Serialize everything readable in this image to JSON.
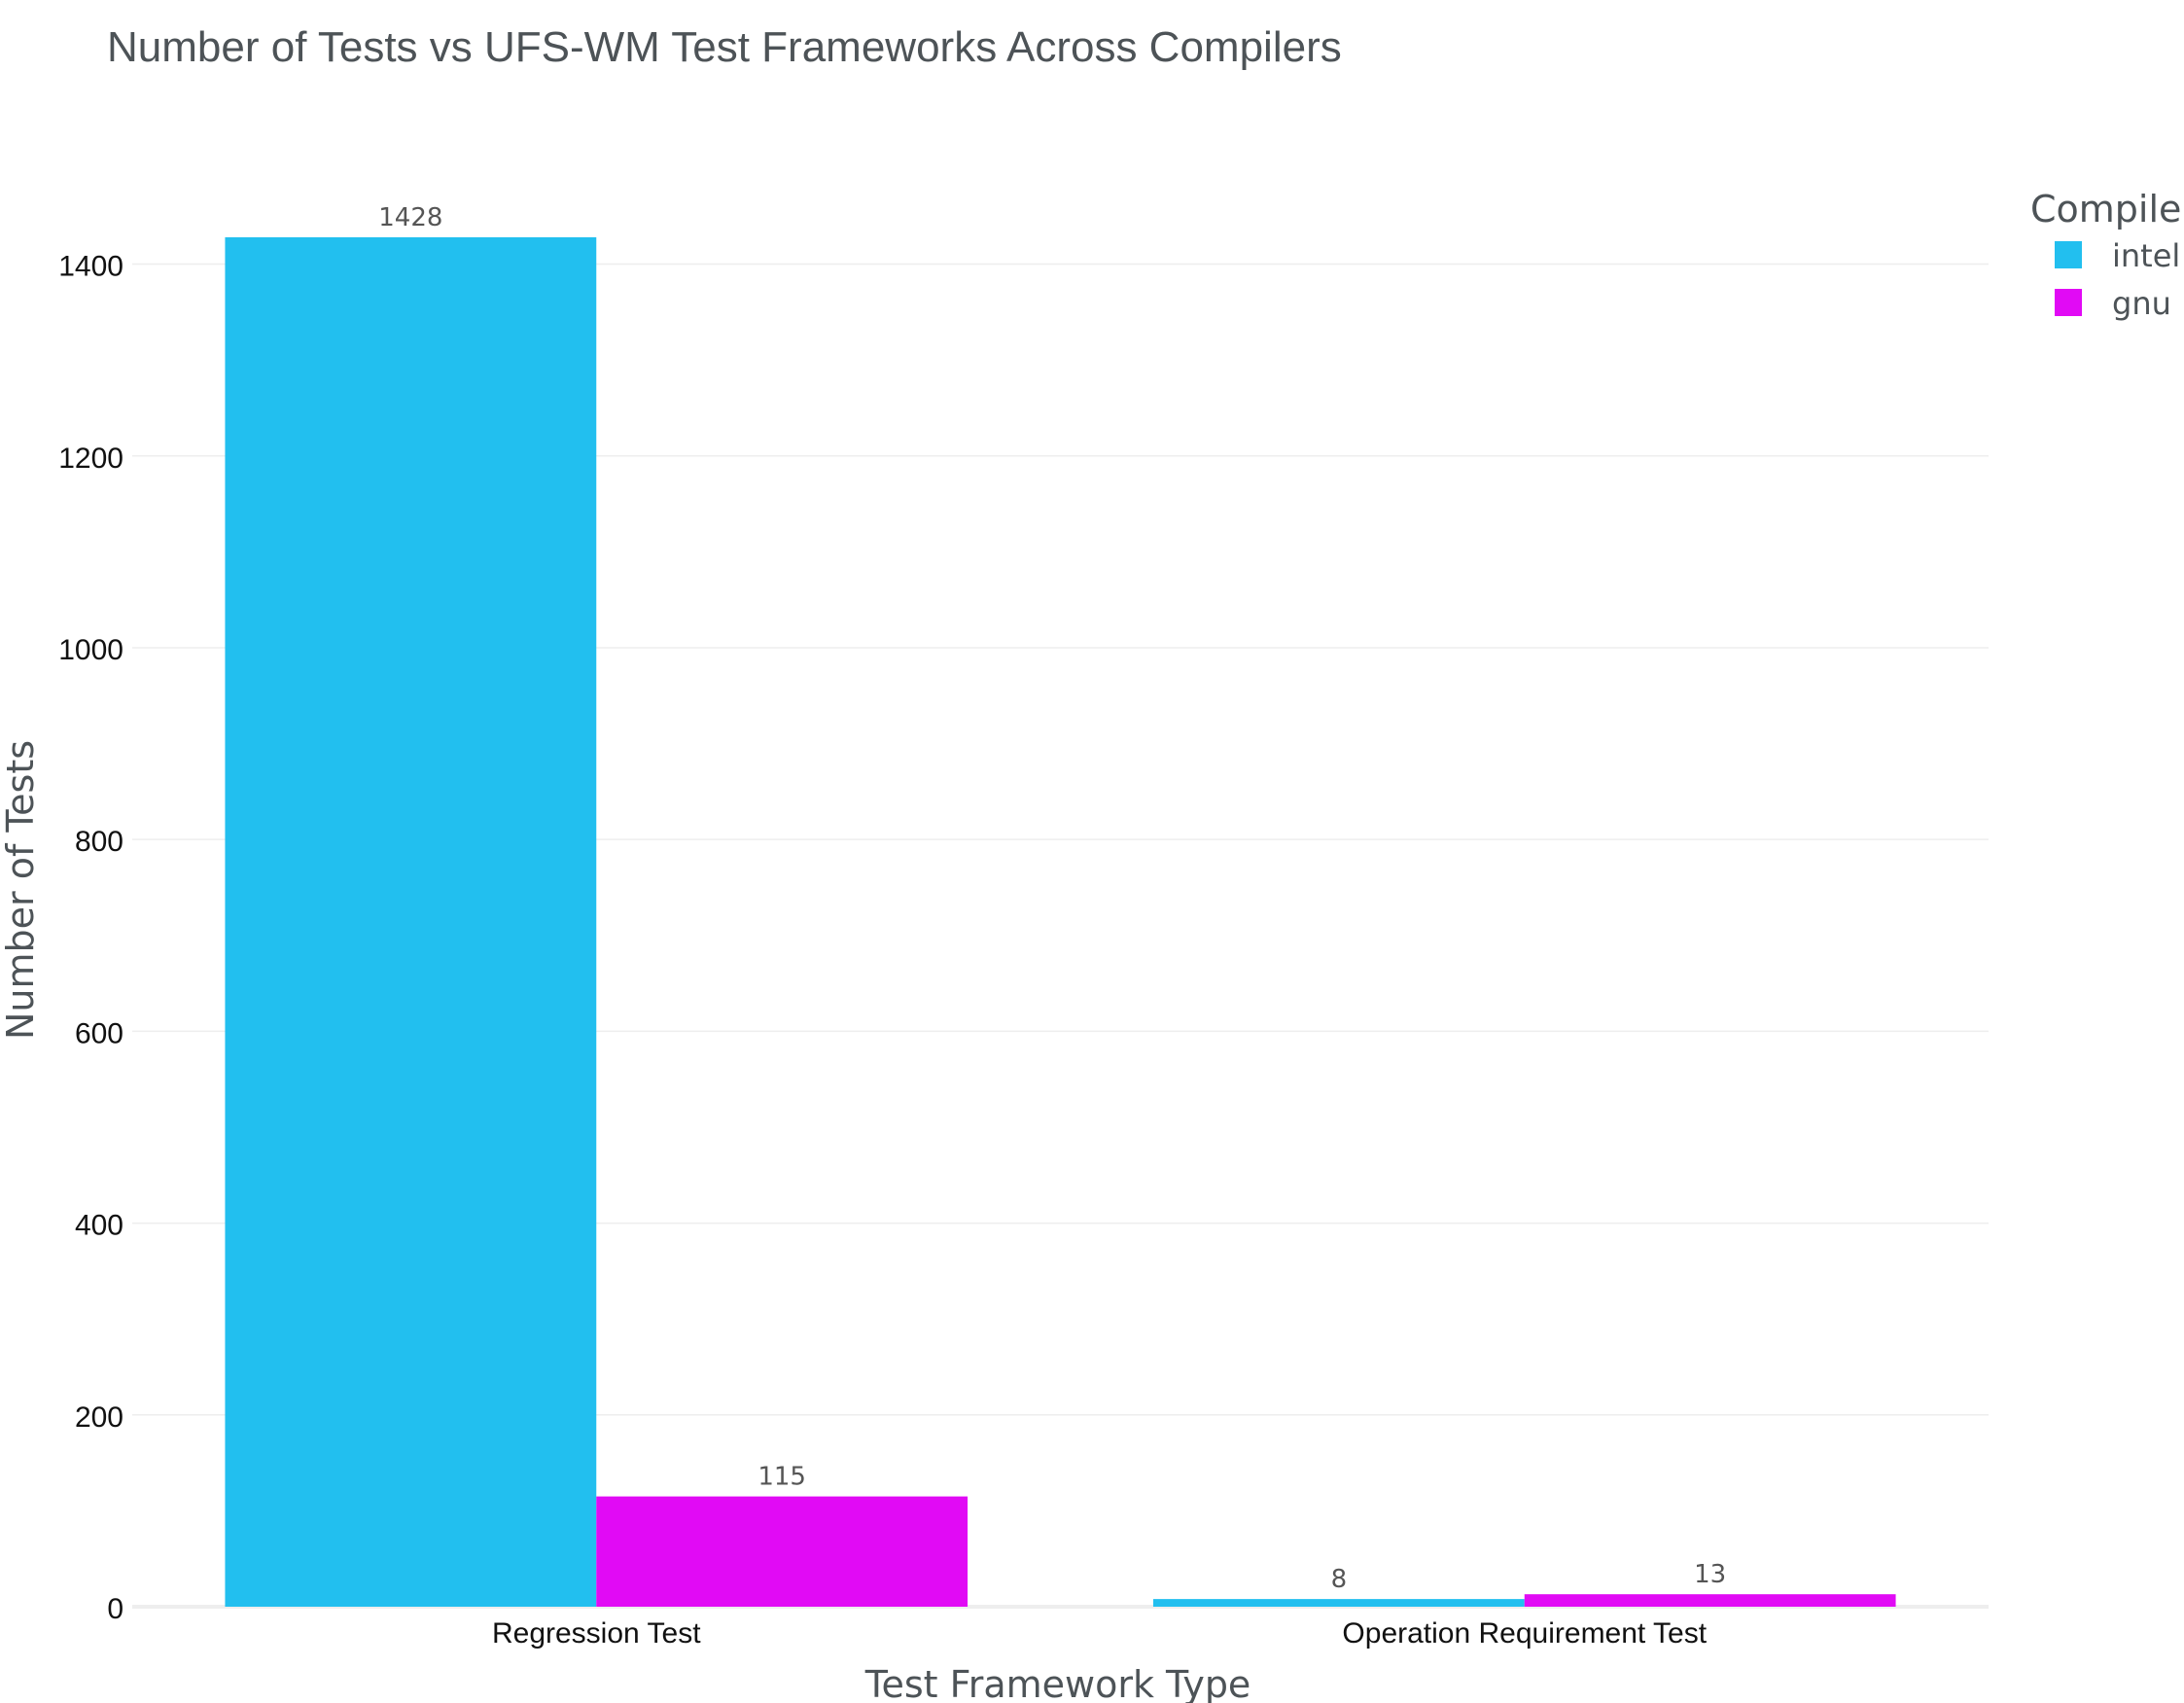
{
  "chart_data": {
    "type": "bar",
    "title": "Number of Tests vs UFS-WM Test Frameworks Across Compilers",
    "xlabel": "Test Framework Type",
    "ylabel": "Number of Tests",
    "categories": [
      "Regression Test",
      "Operation Requirement Test"
    ],
    "series": [
      {
        "name": "intel",
        "values": [
          1428,
          8
        ],
        "color": "#22bfef"
      },
      {
        "name": "gnu",
        "values": [
          115,
          13
        ],
        "color": "#e10af5"
      }
    ],
    "data_labels": [
      [
        "1428",
        "8"
      ],
      [
        "115",
        "13"
      ]
    ],
    "ylim": [
      0,
      1503
    ],
    "yticks": [
      0,
      200,
      400,
      600,
      800,
      1000,
      1200,
      1400
    ],
    "ytick_labels": [
      "0",
      "200",
      "400",
      "600",
      "800",
      "1000",
      "1200",
      "1400"
    ],
    "grid": true,
    "legend": {
      "title": "Compiler",
      "placement": "top-right"
    }
  }
}
